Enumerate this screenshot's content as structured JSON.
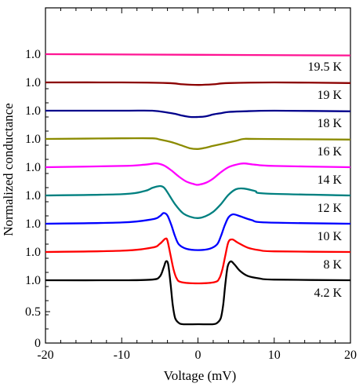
{
  "chart_data": {
    "type": "line",
    "title": "",
    "xlabel": "Voltage (mV)",
    "ylabel": "Normalized conductance",
    "xlim": [
      -20,
      20
    ],
    "x_ticks": [
      "-20",
      "-10",
      "0",
      "10",
      "20"
    ],
    "y_ticks": [
      "0",
      "0.5",
      "1.0"
    ],
    "grid": false,
    "curve_offset_step": 0.5,
    "series": [
      {
        "name": "4.2 K",
        "color": "#000000",
        "baseline": 1.0,
        "points": [
          [
            -20,
            1.0
          ],
          [
            -10,
            1.0
          ],
          [
            -6,
            1.01
          ],
          [
            -5,
            1.06
          ],
          [
            -4.5,
            1.2
          ],
          [
            -4.2,
            1.3
          ],
          [
            -3.9,
            1.25
          ],
          [
            -3.6,
            0.95
          ],
          [
            -3.3,
            0.6
          ],
          [
            -3,
            0.4
          ],
          [
            -2.6,
            0.33
          ],
          [
            -2,
            0.3
          ],
          [
            0,
            0.3
          ],
          [
            2,
            0.3
          ],
          [
            2.6,
            0.33
          ],
          [
            3,
            0.4
          ],
          [
            3.3,
            0.6
          ],
          [
            3.6,
            0.95
          ],
          [
            3.9,
            1.22
          ],
          [
            4.3,
            1.3
          ],
          [
            4.8,
            1.25
          ],
          [
            5.5,
            1.15
          ],
          [
            6.5,
            1.07
          ],
          [
            8,
            1.03
          ],
          [
            10,
            1.01
          ],
          [
            20,
            1.0
          ]
        ]
      },
      {
        "name": "8 K",
        "color": "#ff0000",
        "baseline": 1.0,
        "points": [
          [
            -20,
            1.0
          ],
          [
            -10,
            1.02
          ],
          [
            -6,
            1.07
          ],
          [
            -5,
            1.13
          ],
          [
            -4.3,
            1.21
          ],
          [
            -4,
            1.18
          ],
          [
            -3.6,
            0.95
          ],
          [
            -3.2,
            0.72
          ],
          [
            -2.8,
            0.58
          ],
          [
            -2.2,
            0.52
          ],
          [
            0,
            0.5
          ],
          [
            2.2,
            0.52
          ],
          [
            2.8,
            0.58
          ],
          [
            3.2,
            0.72
          ],
          [
            3.6,
            0.95
          ],
          [
            4,
            1.16
          ],
          [
            4.5,
            1.2
          ],
          [
            5.2,
            1.15
          ],
          [
            6.5,
            1.07
          ],
          [
            8,
            1.03
          ],
          [
            10,
            1.01
          ],
          [
            20,
            1.0
          ]
        ]
      },
      {
        "name": "10 K",
        "color": "#0000ff",
        "baseline": 1.0,
        "points": [
          [
            -20,
            1.0
          ],
          [
            -10,
            1.02
          ],
          [
            -6,
            1.07
          ],
          [
            -5,
            1.12
          ],
          [
            -4.5,
            1.17
          ],
          [
            -4,
            1.13
          ],
          [
            -3.5,
            0.98
          ],
          [
            -3,
            0.8
          ],
          [
            -2.5,
            0.67
          ],
          [
            -1.5,
            0.6
          ],
          [
            0,
            0.58
          ],
          [
            1.5,
            0.6
          ],
          [
            2.5,
            0.67
          ],
          [
            3,
            0.8
          ],
          [
            3.5,
            0.97
          ],
          [
            4,
            1.1
          ],
          [
            4.6,
            1.15
          ],
          [
            5.5,
            1.12
          ],
          [
            7,
            1.06
          ],
          [
            9,
            1.02
          ],
          [
            20,
            1.0
          ]
        ]
      },
      {
        "name": "12 K",
        "color": "#008080",
        "baseline": 1.0,
        "points": [
          [
            -20,
            1.0
          ],
          [
            -10,
            1.02
          ],
          [
            -7,
            1.07
          ],
          [
            -6,
            1.12
          ],
          [
            -5,
            1.15
          ],
          [
            -4.5,
            1.13
          ],
          [
            -4,
            1.05
          ],
          [
            -3,
            0.86
          ],
          [
            -2,
            0.72
          ],
          [
            -1,
            0.66
          ],
          [
            0,
            0.64
          ],
          [
            1,
            0.67
          ],
          [
            2,
            0.74
          ],
          [
            3,
            0.86
          ],
          [
            4,
            1.01
          ],
          [
            5,
            1.1
          ],
          [
            6,
            1.11
          ],
          [
            7.5,
            1.07
          ],
          [
            9,
            1.03
          ],
          [
            20,
            1.0
          ]
        ]
      },
      {
        "name": "14 K",
        "color": "#ff00ff",
        "baseline": 1.0,
        "points": [
          [
            -20,
            1.0
          ],
          [
            -10,
            1.02
          ],
          [
            -7,
            1.04
          ],
          [
            -5.5,
            1.06
          ],
          [
            -4.5,
            1.03
          ],
          [
            -3.5,
            0.95
          ],
          [
            -2.5,
            0.85
          ],
          [
            -1.5,
            0.77
          ],
          [
            -0.5,
            0.73
          ],
          [
            0,
            0.72
          ],
          [
            1,
            0.75
          ],
          [
            2,
            0.82
          ],
          [
            3,
            0.92
          ],
          [
            4,
            1.0
          ],
          [
            5,
            1.04
          ],
          [
            6,
            1.06
          ],
          [
            7.5,
            1.04
          ],
          [
            10,
            1.02
          ],
          [
            20,
            1.0
          ]
        ]
      },
      {
        "name": "16 K",
        "color": "#8b8b00",
        "baseline": 1.0,
        "points": [
          [
            -20,
            1.0
          ],
          [
            -10,
            1.01
          ],
          [
            -6,
            1.01
          ],
          [
            -5,
            0.99
          ],
          [
            -3.5,
            0.95
          ],
          [
            -2,
            0.89
          ],
          [
            -1,
            0.85
          ],
          [
            0,
            0.84
          ],
          [
            1,
            0.86
          ],
          [
            2,
            0.89
          ],
          [
            3.5,
            0.93
          ],
          [
            5,
            0.97
          ],
          [
            6,
            1.0
          ],
          [
            8,
            1.0
          ],
          [
            20,
            0.99
          ]
        ]
      },
      {
        "name": "18 K",
        "color": "#00008b",
        "baseline": 1.0,
        "points": [
          [
            -20,
            1.0
          ],
          [
            -10,
            1.0
          ],
          [
            -6,
            1.0
          ],
          [
            -4,
            0.97
          ],
          [
            -3,
            0.95
          ],
          [
            -2,
            0.92
          ],
          [
            -1,
            0.9
          ],
          [
            0,
            0.9
          ],
          [
            1,
            0.91
          ],
          [
            2,
            0.94
          ],
          [
            3,
            0.96
          ],
          [
            4,
            0.98
          ],
          [
            6,
            0.99
          ],
          [
            10,
            1.0
          ],
          [
            20,
            0.99
          ]
        ]
      },
      {
        "name": "19 K",
        "color": "#8b0000",
        "baseline": 1.0,
        "points": [
          [
            -20,
            1.0
          ],
          [
            -10,
            1.0
          ],
          [
            -4,
            0.99
          ],
          [
            -2,
            0.97
          ],
          [
            0,
            0.96
          ],
          [
            2,
            0.97
          ],
          [
            4,
            0.99
          ],
          [
            10,
            1.0
          ],
          [
            20,
            0.99
          ]
        ]
      },
      {
        "name": "19.5 K",
        "color": "#ff1493",
        "baseline": 1.0,
        "points": [
          [
            -20,
            1.0
          ],
          [
            0,
            0.99
          ],
          [
            20,
            0.98
          ]
        ]
      }
    ]
  }
}
